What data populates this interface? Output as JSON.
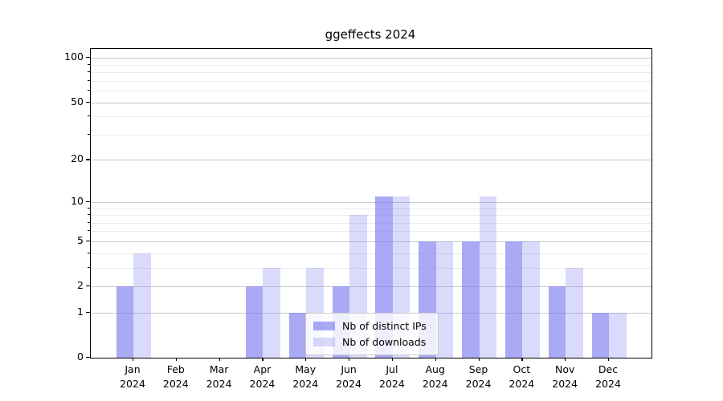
{
  "title": "ggeffects 2024",
  "colors": {
    "bar_ips": "rgba(123,123,240,0.65)",
    "bar_downloads": "rgba(123,123,240,0.28)",
    "grid_major": "#c9c9c9",
    "grid_minor": "#ebebeb",
    "axis": "#000000",
    "legend_border": "#cccccc"
  },
  "legend": {
    "entries": [
      {
        "label": "Nb of distinct IPs"
      },
      {
        "label": "Nb of downloads"
      }
    ]
  },
  "chart_data": {
    "type": "bar",
    "title": "ggeffects 2024",
    "categories": [
      "Jan 2024",
      "Feb 2024",
      "Mar 2024",
      "Apr 2024",
      "May 2024",
      "Jun 2024",
      "Jul 2024",
      "Aug 2024",
      "Sep 2024",
      "Oct 2024",
      "Nov 2024",
      "Dec 2024"
    ],
    "series": [
      {
        "name": "Nb of distinct IPs",
        "values": [
          2,
          0,
          0,
          2,
          1,
          2,
          11,
          5,
          5,
          5,
          2,
          1
        ]
      },
      {
        "name": "Nb of downloads",
        "values": [
          4,
          0,
          0,
          3,
          3,
          8,
          11,
          5,
          11,
          5,
          3,
          1
        ]
      }
    ],
    "xlabel": "",
    "ylabel": "",
    "yscale": "log1p",
    "ylim": [
      0,
      115
    ],
    "y_major_ticks": [
      0,
      1,
      2,
      5,
      10,
      20,
      50,
      100
    ],
    "y_minor_ticks": [
      3,
      4,
      6,
      7,
      8,
      9,
      30,
      40,
      60,
      70,
      80,
      90
    ],
    "grid": true,
    "legend_position": "lower center"
  }
}
